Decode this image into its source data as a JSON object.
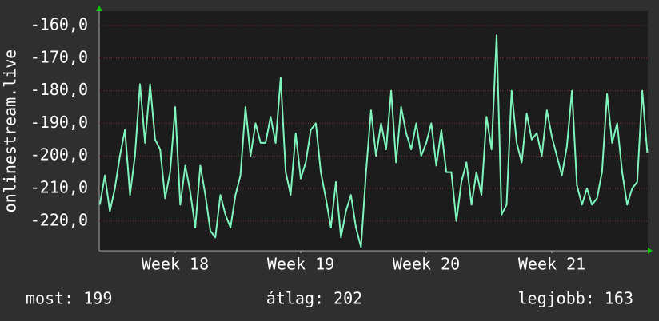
{
  "chart_data": {
    "type": "line",
    "ylabel": "onlinestream.live",
    "x": [
      17.9,
      17.94,
      17.98,
      18.02,
      18.06,
      18.1,
      18.14,
      18.18,
      18.22,
      18.26,
      18.3,
      18.34,
      18.38,
      18.42,
      18.46,
      18.5,
      18.54,
      18.58,
      18.62,
      18.66,
      18.7,
      18.74,
      18.78,
      18.82,
      18.86,
      18.9,
      18.94,
      18.98,
      19.02,
      19.06,
      19.1,
      19.14,
      19.18,
      19.22,
      19.26,
      19.3,
      19.34,
      19.38,
      19.42,
      19.46,
      19.5,
      19.54,
      19.58,
      19.62,
      19.66,
      19.7,
      19.74,
      19.78,
      19.82,
      19.86,
      19.9,
      19.94,
      19.98,
      20.02,
      20.06,
      20.1,
      20.14,
      20.18,
      20.22,
      20.26,
      20.3,
      20.34,
      20.38,
      20.42,
      20.46,
      20.5,
      20.54,
      20.58,
      20.62,
      20.66,
      20.7,
      20.74,
      20.78,
      20.82,
      20.86,
      20.9,
      20.94,
      20.98,
      21.02,
      21.06,
      21.1,
      21.14,
      21.18,
      21.22,
      21.26,
      21.3,
      21.34,
      21.38,
      21.42,
      21.46,
      21.5,
      21.54,
      21.58,
      21.62,
      21.66,
      21.7,
      21.74,
      21.78,
      21.82,
      21.86,
      21.9,
      21.94,
      21.98,
      22.02,
      22.06,
      22.1,
      22.14,
      22.18,
      22.22,
      22.26
    ],
    "values": [
      -215,
      -206,
      -217,
      -210,
      -200,
      -192,
      -212,
      -200,
      -178,
      -196,
      -178,
      -195,
      -198,
      -213,
      -205,
      -185,
      -215,
      -203,
      -211,
      -222,
      -203,
      -212,
      -223,
      -225,
      -212,
      -218,
      -222,
      -212,
      -206,
      -185,
      -200,
      -190,
      -196,
      -196,
      -188,
      -196,
      -176,
      -205,
      -212,
      -193,
      -207,
      -202,
      -192,
      -190,
      -205,
      -213,
      -222,
      -208,
      -225,
      -217,
      -212,
      -222,
      -228,
      -205,
      -186,
      -200,
      -190,
      -198,
      -180,
      -202,
      -185,
      -193,
      -198,
      -190,
      -200,
      -196,
      -190,
      -203,
      -192,
      -205,
      -205,
      -220,
      -208,
      -202,
      -215,
      -205,
      -212,
      -188,
      -198,
      -163,
      -218,
      -215,
      -180,
      -196,
      -202,
      -187,
      -195,
      -193,
      -200,
      -186,
      -194,
      -200,
      -206,
      -197,
      -180,
      -209,
      -215,
      -210,
      -215,
      -213,
      -205,
      -181,
      -196,
      -190,
      -205,
      -215,
      -210,
      -208,
      -180,
      -199
    ],
    "color": "#7ff5bd",
    "xlim": [
      17.895,
      22.264
    ],
    "xticks": [
      {
        "value": 18.5,
        "label": "Week 18"
      },
      {
        "value": 19.5,
        "label": "Week 19"
      },
      {
        "value": 20.5,
        "label": "Week 20"
      },
      {
        "value": 21.5,
        "label": "Week 21"
      }
    ],
    "ylim": [
      -229.1,
      -155.6
    ],
    "yticks": [
      {
        "value": -220,
        "label": "-220,0"
      },
      {
        "value": -210,
        "label": "-210,0"
      },
      {
        "value": -200,
        "label": "-200,0"
      },
      {
        "value": -190,
        "label": "-190,0"
      },
      {
        "value": -180,
        "label": "-180,0"
      },
      {
        "value": -170,
        "label": "-170,0"
      },
      {
        "value": -160,
        "label": "-160,0"
      }
    ],
    "grid": true,
    "footer": [
      "most: 199",
      "átlag: 202",
      "legjobb: 163"
    ]
  }
}
